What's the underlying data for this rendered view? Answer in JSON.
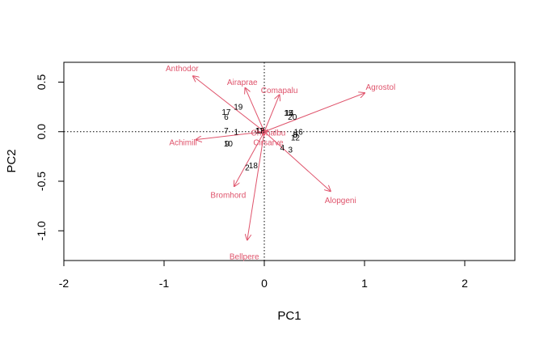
{
  "chart_data": {
    "type": "biplot",
    "xlabel": "PC1",
    "ylabel": "PC2",
    "xlim": [
      -2.0,
      2.5
    ],
    "ylim": [
      -1.3,
      0.7
    ],
    "x_ticks": [
      -2,
      -1,
      0,
      1,
      2
    ],
    "y_ticks": [
      -1.0,
      -0.5,
      0.0,
      0.5
    ],
    "arrow_color": "#DF536B",
    "reference_lines": {
      "x": 0,
      "y": 0,
      "style": "dotted"
    },
    "observations": [
      {
        "label": "1",
        "x": -0.28,
        "y": 0.0
      },
      {
        "label": "2",
        "x": -0.17,
        "y": -0.36
      },
      {
        "label": "3",
        "x": 0.26,
        "y": -0.18
      },
      {
        "label": "4",
        "x": 0.18,
        "y": -0.16
      },
      {
        "label": "5",
        "x": 0.31,
        "y": -0.03
      },
      {
        "label": "6",
        "x": -0.38,
        "y": 0.15
      },
      {
        "label": "7",
        "x": -0.38,
        "y": 0.01
      },
      {
        "label": "8",
        "x": 0.31,
        "y": -0.03
      },
      {
        "label": "9",
        "x": -0.37,
        "y": -0.12
      },
      {
        "label": "10",
        "x": -0.36,
        "y": -0.12
      },
      {
        "label": "11",
        "x": -0.05,
        "y": 0.01
      },
      {
        "label": "12",
        "x": 0.31,
        "y": -0.06
      },
      {
        "label": "13",
        "x": -0.04,
        "y": 0.01
      },
      {
        "label": "14",
        "x": 0.25,
        "y": 0.19
      },
      {
        "label": "15",
        "x": 0.24,
        "y": 0.19
      },
      {
        "label": "16",
        "x": 0.34,
        "y": 0.0
      },
      {
        "label": "17",
        "x": -0.38,
        "y": 0.2
      },
      {
        "label": "18",
        "x": -0.11,
        "y": -0.34
      },
      {
        "label": "19",
        "x": -0.26,
        "y": 0.25
      },
      {
        "label": "20",
        "x": 0.28,
        "y": 0.15
      }
    ],
    "variables": [
      {
        "label": "Achimill",
        "x": -0.68,
        "y": -0.08,
        "label_x": -0.81,
        "label_y": -0.11
      },
      {
        "label": "Agrostol",
        "x": 1.0,
        "y": 0.39,
        "label_x": 1.16,
        "label_y": 0.45
      },
      {
        "label": "Airaprae",
        "x": -0.19,
        "y": 0.44,
        "label_x": -0.22,
        "label_y": 0.5
      },
      {
        "label": "Alopgeni",
        "x": 0.66,
        "y": -0.6,
        "label_x": 0.76,
        "label_y": -0.69
      },
      {
        "label": "Anthodor",
        "x": -0.71,
        "y": 0.56,
        "label_x": -0.82,
        "label_y": 0.64
      },
      {
        "label": "Bellpere",
        "x": -0.17,
        "y": -1.09,
        "label_x": -0.2,
        "label_y": -1.26
      },
      {
        "label": "Bromhord",
        "x": -0.3,
        "y": -0.55,
        "label_x": -0.36,
        "label_y": -0.64
      },
      {
        "label": "Chenalbu",
        "x": -0.02,
        "y": 0.02,
        "label_x": 0.04,
        "label_y": -0.01
      },
      {
        "label": "Cirsarve",
        "x": 0.0,
        "y": -0.03,
        "label_x": 0.04,
        "label_y": -0.11
      },
      {
        "label": "Comapalu",
        "x": 0.15,
        "y": 0.37,
        "label_x": 0.15,
        "label_y": 0.42
      }
    ]
  }
}
